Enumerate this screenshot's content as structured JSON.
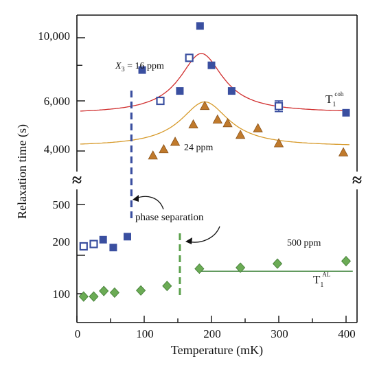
{
  "chart_data": {
    "type": "scatter",
    "xlabel": "Temperature (mK)",
    "ylabel": "Relaxation time (s)",
    "xlim": [
      0,
      410
    ],
    "x_ticks": [
      "0",
      "100",
      "200",
      "300",
      "400"
    ],
    "y_ticks_upper": [
      "10,000",
      "6,000",
      "4,000"
    ],
    "y_ticks_lower": [
      "500",
      "200",
      "100"
    ],
    "axis_break": "≈",
    "upper_panel": {
      "yscale": "log",
      "ylim": [
        3600,
        11500
      ],
      "series": [
        {
          "name": "T1coh",
          "marker": "square",
          "color": "#3a4fa0",
          "points": [
            {
              "x": 97,
              "y": 7700,
              "filled": true
            },
            {
              "x": 124,
              "y": 6000,
              "filled": false
            },
            {
              "x": 153,
              "y": 6500,
              "filled": true
            },
            {
              "x": 167,
              "y": 8500,
              "filled": false
            },
            {
              "x": 183,
              "y": 11000,
              "filled": true
            },
            {
              "x": 200,
              "y": 8000,
              "filled": true
            },
            {
              "x": 230,
              "y": 6500,
              "filled": true
            },
            {
              "x": 300,
              "y": 5750,
              "filled": false,
              "err": 250
            },
            {
              "x": 400,
              "y": 5450,
              "filled": true
            }
          ],
          "fit": {
            "baseline": 5400,
            "end": 5450,
            "peak_x": 185,
            "peak_y": 8800,
            "width": 35
          }
        },
        {
          "name": "24 ppm",
          "marker": "triangle",
          "color": "#c07a2c",
          "points": [
            {
              "x": 113,
              "y": 3850
            },
            {
              "x": 129,
              "y": 4050
            },
            {
              "x": 146,
              "y": 4300
            },
            {
              "x": 173,
              "y": 4950
            },
            {
              "x": 190,
              "y": 5750
            },
            {
              "x": 209,
              "y": 5150
            },
            {
              "x": 224,
              "y": 5000
            },
            {
              "x": 243,
              "y": 4550
            },
            {
              "x": 269,
              "y": 4800
            },
            {
              "x": 300,
              "y": 4250
            },
            {
              "x": 396,
              "y": 3950
            }
          ],
          "fit": {
            "baseline": 4150,
            "end": 4150,
            "peak_x": 190,
            "peak_y": 5950,
            "width": 40
          }
        }
      ]
    },
    "lower_panel": {
      "yscale": "log",
      "ylim": [
        80,
        700
      ],
      "series": [
        {
          "name": "16 ppm",
          "marker": "square",
          "color": "#3a4fa0",
          "points": [
            {
              "x": 10,
              "y": 235,
              "filled": false
            },
            {
              "x": 25,
              "y": 245,
              "filled": false
            },
            {
              "x": 39,
              "y": 265,
              "filled": true
            },
            {
              "x": 54,
              "y": 230,
              "filled": true
            },
            {
              "x": 75,
              "y": 280,
              "filled": true
            }
          ]
        },
        {
          "name": "500 ppm",
          "marker": "diamond",
          "color": "#5aa04a",
          "points": [
            {
              "x": 10,
              "y": 95
            },
            {
              "x": 25,
              "y": 95
            },
            {
              "x": 40,
              "y": 105
            },
            {
              "x": 56,
              "y": 102
            },
            {
              "x": 95,
              "y": 106
            },
            {
              "x": 134,
              "y": 115
            },
            {
              "x": 182,
              "y": 157
            },
            {
              "x": 243,
              "y": 160
            },
            {
              "x": 298,
              "y": 172
            },
            {
              "x": 400,
              "y": 180
            }
          ],
          "fit_line": {
            "x1": 180,
            "x2": 410,
            "y": 150
          }
        }
      ]
    },
    "phase_separation": [
      {
        "x": 81,
        "color": "#3a4fa0"
      },
      {
        "x": 153,
        "color": "#5aa04a"
      }
    ],
    "annotations": {
      "x3_prefix": "X",
      "x3_sub": "3",
      "x3_value": " = 16 ppm",
      "ppm24": "24 ppm",
      "ppm500": "500 ppm",
      "t1coh_main": "T",
      "t1coh_sub": "1",
      "t1coh_sup": "coh",
      "t1al_main": "T",
      "t1al_sub": "1",
      "t1al_sup": "AL",
      "phase": "phase separation"
    },
    "grid": false,
    "legend": "none"
  }
}
